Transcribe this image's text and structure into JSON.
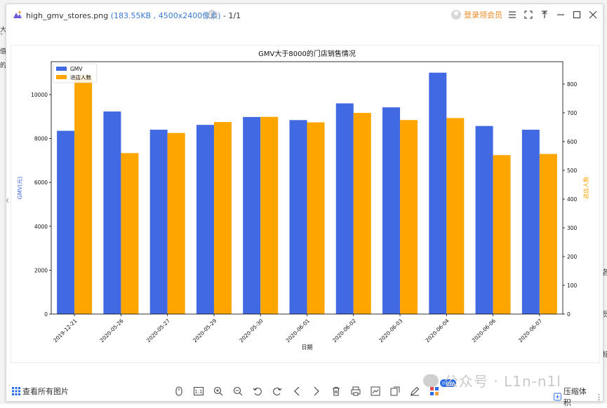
{
  "window": {
    "file_name": "high_gmv_stores.png",
    "meta": "(183.55KB , 4500x2400像素)",
    "page_indicator": "- 1/1",
    "login_label": "登录领会员"
  },
  "toolbar": {
    "view_all_label": "查看所有图片",
    "new_badge": "new",
    "compress_label": "压缩体积"
  },
  "watermark": {
    "text": "公众号 · L1n-n1l"
  },
  "background": {
    "left_chars": [
      "大",
      "ˇ",
      "值",
      "的"
    ],
    "right_chars": [
      "各",
      "员",
      "标"
    ]
  },
  "colors": {
    "gmv": "#4169E1",
    "visitors": "#FFA500",
    "accent": "#f08a24"
  },
  "chart_data": {
    "type": "bar",
    "title": "GMV大于8000的门店销售情况",
    "xlabel": "日期",
    "ylabel": "GMV(元)",
    "ylabel_right": "进店人数",
    "categories": [
      "2019-12-21",
      "2020-05-26",
      "2020-05-27",
      "2020-05-29",
      "2020-05-30",
      "2020-06-01",
      "2020-06-02",
      "2020-06-03",
      "2020-06-04",
      "2020-06-06",
      "2020-06-07"
    ],
    "series": [
      {
        "name": "GMV",
        "axis": "left",
        "values": [
          8350,
          9230,
          8400,
          8620,
          8980,
          8840,
          9600,
          9420,
          11000,
          8570,
          8400
        ]
      },
      {
        "name": "进店人数",
        "axis": "right",
        "values": [
          830,
          560,
          630,
          668,
          686,
          667,
          700,
          675,
          682,
          553,
          557
        ]
      }
    ],
    "ylim": [
      0,
      11500
    ],
    "ylim_right": [
      0,
      878
    ],
    "yticks": [
      0,
      2000,
      4000,
      6000,
      8000,
      10000
    ],
    "yticks_right": [
      0,
      100,
      200,
      300,
      400,
      500,
      600,
      700,
      800
    ],
    "legend": [
      "GMV",
      "进店人数"
    ],
    "legend_position": "top-left"
  }
}
